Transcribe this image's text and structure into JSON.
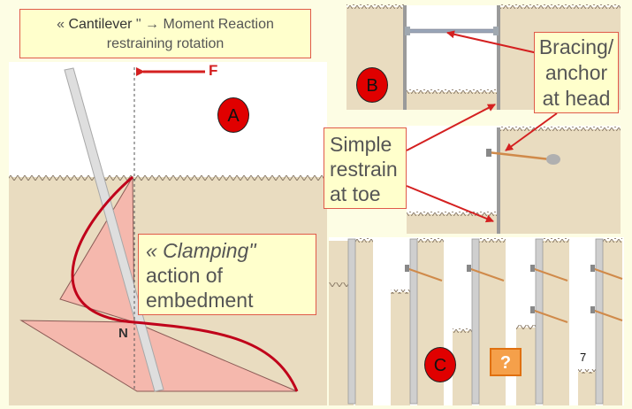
{
  "callouts": {
    "top_line1_prefix": "« ",
    "top_line1_bold": "Cantilever",
    "top_line1_rest": " \" → Moment Reaction",
    "top_line2": "restraining rotation",
    "clamp_line1": "« Clamping\"",
    "clamp_line2": "action of",
    "clamp_line3": "embedment",
    "brace_line1": "Bracing/",
    "brace_line2": "anchor",
    "brace_line3": "at head",
    "toe_line1": "Simple",
    "toe_line2": "restrain",
    "toe_line3": "at toe"
  },
  "labels": {
    "force": "F",
    "pivot": "N",
    "panel_a": "A",
    "panel_b": "B",
    "panel_c": "C",
    "question": "?",
    "page_number": "7"
  },
  "colors": {
    "background": "#fdfde4",
    "soil": "#e9dcc0",
    "pressure_fill": "#f5b8ad",
    "curve": "#c0001a",
    "arrow": "#d42020",
    "callout_fill": "#ffffcc",
    "callout_border": "#e05a4a",
    "badge": "#e00000",
    "anchor_rod": "#d08a4a",
    "wall": "#cfcfcf"
  }
}
